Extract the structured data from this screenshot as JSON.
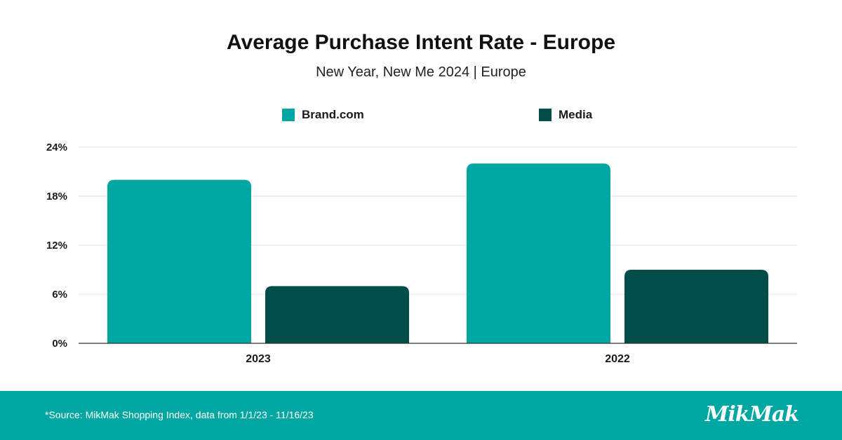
{
  "chart_data": {
    "type": "bar",
    "title": "Average Purchase Intent Rate - Europe",
    "subtitle": "New Year, New Me 2024 | Europe",
    "categories": [
      "2023",
      "2022"
    ],
    "series": [
      {
        "name": "Brand.com",
        "color": "#00a6a1",
        "values": [
          20,
          22
        ]
      },
      {
        "name": "Media",
        "color": "#004d4a",
        "values": [
          7,
          9
        ]
      }
    ],
    "ylim": [
      0,
      24
    ],
    "yticks": [
      0,
      6,
      12,
      18,
      24
    ],
    "ytick_labels": [
      "0%",
      "6%",
      "12%",
      "18%",
      "24%"
    ],
    "grid": true,
    "legend_position": "top-center"
  },
  "footer": {
    "source": "*Source: MikMak Shopping Index, data from 1/1/23 - 11/16/23",
    "logo_text": "MikMak"
  }
}
